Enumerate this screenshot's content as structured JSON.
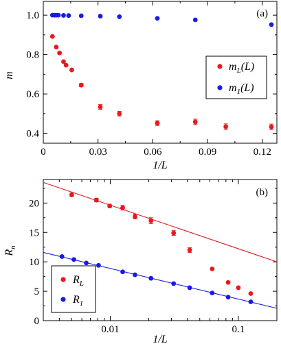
{
  "chart_data": [
    {
      "type": "scatter",
      "panel_label": "(a)",
      "xlabel": "1/L",
      "ylabel": "m",
      "xlim": [
        0,
        0.128
      ],
      "ylim": [
        0.35,
        1.07
      ],
      "xticks": [
        0,
        0.03,
        0.06,
        0.09,
        0.12
      ],
      "xtick_labels": [
        "0",
        "0.03",
        "0.06",
        "0.09",
        "0.12"
      ],
      "yticks": [
        0.4,
        0.6,
        0.8,
        1.0
      ],
      "ytick_labels": [
        "0.4",
        "0.6",
        "0.8",
        "1.0"
      ],
      "legend_placement": "right",
      "series": [
        {
          "name": "m_L(L)",
          "label_main": "m",
          "label_sub": "L",
          "label_suffix": "(L)",
          "color": "#e8191e",
          "x": [
            0.005,
            0.0071,
            0.0089,
            0.0111,
            0.0125,
            0.0156,
            0.0208,
            0.03125,
            0.0417,
            0.0625,
            0.0833,
            0.1,
            0.125
          ],
          "y": [
            0.892,
            0.838,
            0.808,
            0.764,
            0.746,
            0.722,
            0.645,
            0.534,
            0.5,
            0.452,
            0.458,
            0.434,
            0.433
          ],
          "err": [
            0,
            0,
            0,
            0,
            0,
            0,
            0.008,
            0.012,
            0.012,
            0.012,
            0.014,
            0.014,
            0.014
          ]
        },
        {
          "name": "m_1(L)",
          "label_main": "m",
          "label_sub": "1",
          "label_suffix": "(L)",
          "color": "#1a1ae6",
          "x": [
            0.005,
            0.0062,
            0.0071,
            0.0083,
            0.0111,
            0.0139,
            0.0208,
            0.03125,
            0.0417,
            0.0625,
            0.0833,
            0.125
          ],
          "y": [
            1.0,
            1.0,
            1.0,
            1.0,
            0.999,
            0.998,
            0.997,
            0.995,
            0.992,
            0.984,
            0.976,
            0.952
          ],
          "err": [
            0,
            0,
            0,
            0,
            0,
            0,
            0,
            0,
            0,
            0,
            0,
            0
          ]
        }
      ]
    },
    {
      "type": "scatter",
      "panel_label": "(b)",
      "xlabel": "1/L",
      "ylabel": "R",
      "ylabel_sub": "n",
      "xscale": "log",
      "xlim": [
        0.003,
        0.2
      ],
      "ylim": [
        0,
        24
      ],
      "xticks": [
        0.01,
        0.1
      ],
      "xtick_labels": [
        "0.01",
        "0.1"
      ],
      "yticks": [
        0,
        5,
        10,
        15,
        20
      ],
      "ytick_labels": [
        "0",
        "5",
        "10",
        "15",
        "20"
      ],
      "legend_placement": "bottom-left",
      "series": [
        {
          "name": "R_L",
          "label_main": "R",
          "label_sub": "L",
          "color": "#e8191e",
          "x": [
            0.005,
            0.0078,
            0.0099,
            0.0125,
            0.0156,
            0.0208,
            0.03125,
            0.0417,
            0.0625,
            0.0833,
            0.1,
            0.125
          ],
          "y": [
            21.4,
            20.5,
            19.5,
            19.2,
            17.7,
            17.0,
            14.9,
            12.0,
            8.8,
            6.5,
            5.6,
            4.6
          ],
          "err": [
            0.3,
            0.3,
            0.3,
            0.4,
            0.4,
            0.5,
            0.4,
            0.4,
            0,
            0,
            0,
            0
          ],
          "fit_line": {
            "x": [
              0.003,
              0.2
            ],
            "y": [
              23.5,
              10.0
            ]
          }
        },
        {
          "name": "R_1",
          "label_main": "R",
          "label_sub": "1",
          "color": "#1a1ae6",
          "x": [
            0.0042,
            0.0052,
            0.0065,
            0.0081,
            0.0125,
            0.0156,
            0.0208,
            0.03125,
            0.0417,
            0.0625,
            0.0833,
            0.125
          ],
          "y": [
            10.9,
            10.4,
            9.8,
            9.4,
            8.3,
            7.8,
            7.2,
            6.3,
            5.6,
            4.7,
            4.0,
            3.2
          ],
          "err": [
            0,
            0,
            0,
            0,
            0,
            0,
            0,
            0,
            0,
            0,
            0,
            0
          ],
          "fit_line": {
            "x": [
              0.003,
              0.2
            ],
            "y": [
              11.6,
              2.1
            ]
          }
        }
      ]
    }
  ]
}
